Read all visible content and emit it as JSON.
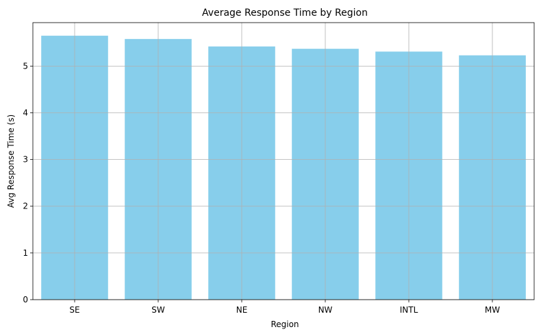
{
  "chart_data": {
    "type": "bar",
    "title": "Average Response Time by Region",
    "xlabel": "Region",
    "ylabel": "Avg Response Time (s)",
    "categories": [
      "SE",
      "SW",
      "NE",
      "NW",
      "INTL",
      "MW"
    ],
    "values": [
      5.65,
      5.58,
      5.42,
      5.37,
      5.31,
      5.23
    ],
    "ylim": [
      0,
      5.93
    ],
    "yticks": [
      "0",
      "1",
      "2",
      "3",
      "4",
      "5"
    ],
    "grid": true,
    "bar_color": "#87CEEB",
    "grid_color": "#b0b0b0"
  }
}
